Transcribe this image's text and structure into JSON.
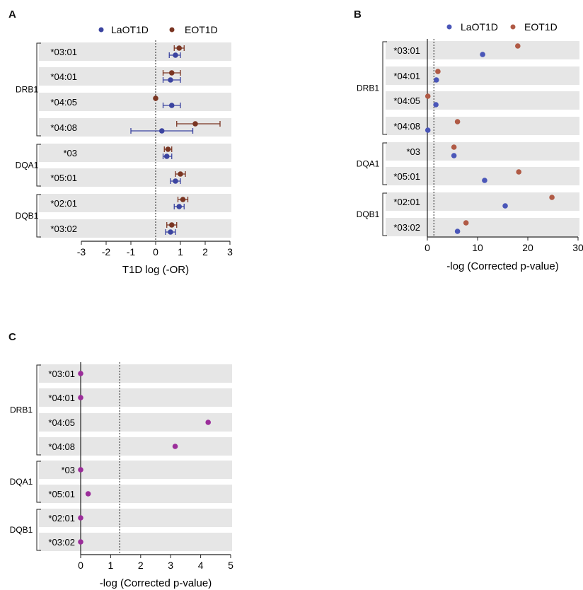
{
  "panels": {
    "a": "A",
    "b": "B",
    "c": "C"
  },
  "chart_data": [
    {
      "panel": "A",
      "type": "errorbar",
      "xlabel": "T1D log (-OR)",
      "xlim": [
        -3,
        3
      ],
      "xticks": [
        -3,
        -2,
        -1,
        0,
        1,
        2,
        3
      ],
      "reference_line_x": 0,
      "legend": [
        "LaOT1D",
        "EOT1D"
      ],
      "legend_placement": "top-center",
      "groups": [
        {
          "name": "DRB1",
          "alleles": [
            "*03:01",
            "*04:01",
            "*04:05",
            "*04:08"
          ]
        },
        {
          "name": "DQA1",
          "alleles": [
            "*03",
            "*05:01"
          ]
        },
        {
          "name": "DQB1",
          "alleles": [
            "*02:01",
            "*03:02"
          ]
        }
      ],
      "series": [
        {
          "name": "LaOT1D",
          "color": "#3b44a0",
          "values": [
            0.8,
            0.6,
            0.65,
            0.25,
            0.45,
            0.8,
            0.95,
            0.6
          ],
          "lower": [
            0.55,
            0.3,
            0.3,
            -1.0,
            0.3,
            0.6,
            0.75,
            0.4
          ],
          "upper": [
            1.0,
            1.0,
            1.0,
            1.5,
            0.65,
            1.0,
            1.15,
            0.8
          ]
        },
        {
          "name": "EOT1D",
          "color": "#7a3522",
          "values": [
            0.95,
            0.65,
            0.0,
            1.6,
            0.5,
            1.0,
            1.1,
            0.65
          ],
          "lower": [
            0.75,
            0.3,
            0.0,
            0.85,
            0.35,
            0.8,
            0.9,
            0.45
          ],
          "upper": [
            1.15,
            1.0,
            0.0,
            2.6,
            0.65,
            1.2,
            1.3,
            0.85
          ]
        }
      ]
    },
    {
      "panel": "B",
      "type": "scatter",
      "xlabel": "-log (Corrected p-value)",
      "xlim": [
        0,
        30
      ],
      "xticks": [
        0,
        10,
        20,
        30
      ],
      "reference_line_x": 1.3,
      "legend": [
        "LaOT1D",
        "EOT1D"
      ],
      "legend_placement": "top-center",
      "groups": [
        {
          "name": "DRB1",
          "alleles": [
            "*03:01",
            "*04:01",
            "*04:05",
            "*04:08"
          ]
        },
        {
          "name": "DQA1",
          "alleles": [
            "*03",
            "*05:01"
          ]
        },
        {
          "name": "DQB1",
          "alleles": [
            "*02:01",
            "*03:02"
          ]
        }
      ],
      "series": [
        {
          "name": "LaOT1D",
          "color": "#4a56b8",
          "values": [
            11.0,
            1.8,
            1.7,
            0.1,
            5.3,
            11.4,
            15.5,
            6.0
          ]
        },
        {
          "name": "EOT1D",
          "color": "#b05a45",
          "values": [
            18.0,
            2.1,
            0.1,
            6.0,
            5.3,
            18.2,
            24.8,
            7.7
          ]
        }
      ]
    },
    {
      "panel": "C",
      "type": "scatter",
      "xlabel": "-log (Corrected p-value)",
      "xlim": [
        0,
        5
      ],
      "xticks": [
        0,
        1,
        2,
        3,
        4,
        5
      ],
      "reference_line_x": 1.3,
      "groups": [
        {
          "name": "DRB1",
          "alleles": [
            "*03:01",
            "*04:01",
            "*04:05",
            "*04:08"
          ]
        },
        {
          "name": "DQA1",
          "alleles": [
            "*03",
            "*05:01"
          ]
        },
        {
          "name": "DQB1",
          "alleles": [
            "*02:01",
            "*03:02"
          ]
        }
      ],
      "series": [
        {
          "name": "",
          "color": "#9b2d9a",
          "values": [
            0.0,
            0.0,
            4.25,
            3.15,
            0.0,
            0.25,
            0.0,
            0.0
          ]
        }
      ]
    }
  ]
}
